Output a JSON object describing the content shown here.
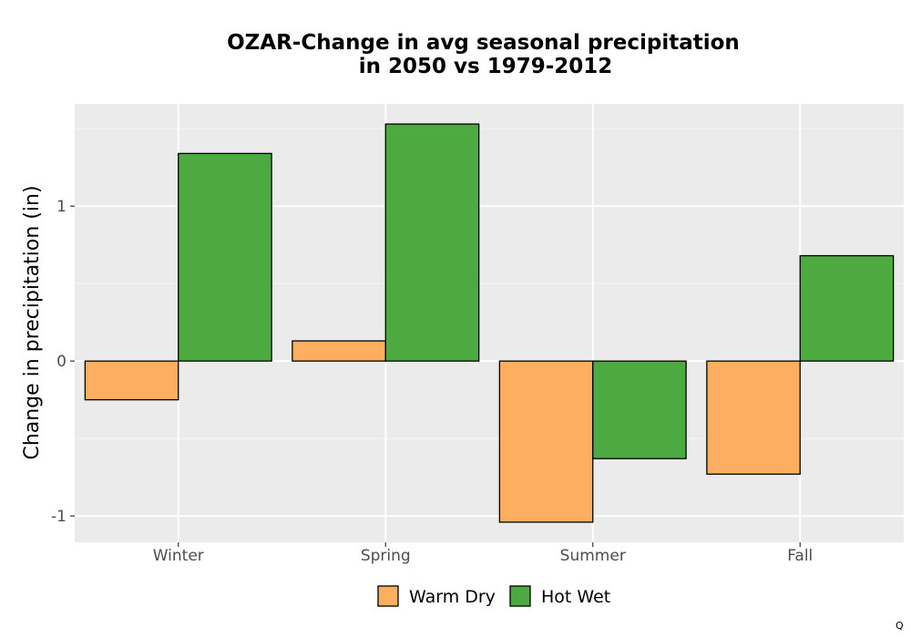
{
  "chart_data": {
    "type": "bar",
    "title_lines": [
      "OZAR-Change in avg seasonal precipitation",
      "in 2050 vs 1979-2012"
    ],
    "xlabel": "",
    "ylabel": "Change in precipitation (in)",
    "categories": [
      "Winter",
      "Spring",
      "Summer",
      "Fall"
    ],
    "series": [
      {
        "name": "Warm Dry",
        "color": "#FDAE61",
        "values": [
          -0.25,
          0.13,
          -1.04,
          -0.73
        ]
      },
      {
        "name": "Hot Wet",
        "color": "#4DAA41",
        "values": [
          1.34,
          1.53,
          -0.63,
          0.68
        ]
      }
    ],
    "ylim": [
      -1.17,
      1.66
    ],
    "y_ticks": [
      -1,
      0,
      1
    ],
    "y_tick_labels": [
      "-1",
      "0",
      "1"
    ],
    "grid": true,
    "legend_position": "bottom"
  },
  "corner_mark": "Q"
}
